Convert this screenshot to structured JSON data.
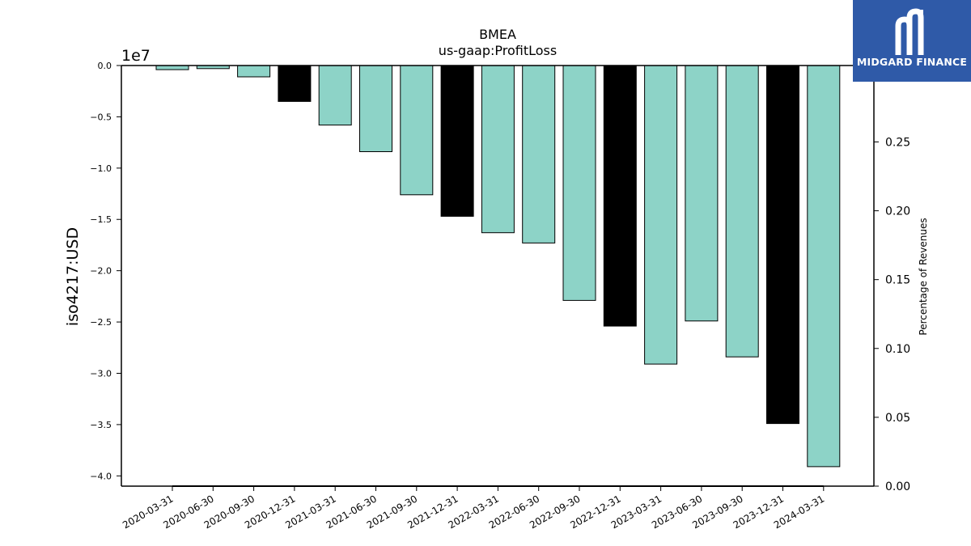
{
  "chart_data": {
    "type": "bar",
    "title": "BMEA",
    "subtitle": "us-gaap:ProfitLoss",
    "ylabel": "iso4217:USD",
    "y2label": "Percentage of Revenues",
    "y_offset_label": "1e7",
    "y_scale": 10000000,
    "ylim": [
      -4.1,
      0.0
    ],
    "yticks": [
      0.0,
      -0.5,
      -1.0,
      -1.5,
      -2.0,
      -2.5,
      -3.0,
      -3.5,
      -4.0
    ],
    "ytick_labels": [
      "0.0",
      "−0.5",
      "−1.0",
      "−1.5",
      "−2.0",
      "−2.5",
      "−3.0",
      "−3.5",
      "−4.0"
    ],
    "y2lim": [
      0.0,
      0.3055
    ],
    "y2ticks": [
      0.0,
      0.05,
      0.1,
      0.15,
      0.2,
      0.25
    ],
    "y2tick_labels": [
      "0.00",
      "0.05",
      "0.10",
      "0.15",
      "0.20",
      "0.25"
    ],
    "categories": [
      "2020-03-31",
      "2020-06-30",
      "2020-09-30",
      "2020-12-31",
      "2021-03-31",
      "2021-06-30",
      "2021-09-30",
      "2021-12-31",
      "2022-03-31",
      "2022-06-30",
      "2022-09-30",
      "2022-12-31",
      "2023-03-31",
      "2023-06-30",
      "2023-09-30",
      "2023-12-31",
      "2024-03-31"
    ],
    "values": [
      -0.04,
      -0.03,
      -0.11,
      -0.35,
      -0.58,
      -0.84,
      -1.26,
      -1.47,
      -1.63,
      -1.73,
      -2.29,
      -2.54,
      -2.91,
      -2.49,
      -2.84,
      -3.49,
      -3.91
    ],
    "annual": [
      false,
      false,
      false,
      true,
      false,
      false,
      false,
      true,
      false,
      false,
      false,
      true,
      false,
      false,
      false,
      true,
      false
    ],
    "percentage_of_revenues": [
      0,
      0,
      0,
      0,
      0,
      0,
      0,
      0,
      0,
      0,
      0,
      0,
      0,
      0,
      0,
      0,
      0
    ],
    "colors": {
      "quarter": "#8dd3c7",
      "annual": "#000000",
      "edge": "#000000"
    },
    "grid": false,
    "legend": "none"
  },
  "logo": {
    "text": "MIDGARD FINANCE"
  }
}
